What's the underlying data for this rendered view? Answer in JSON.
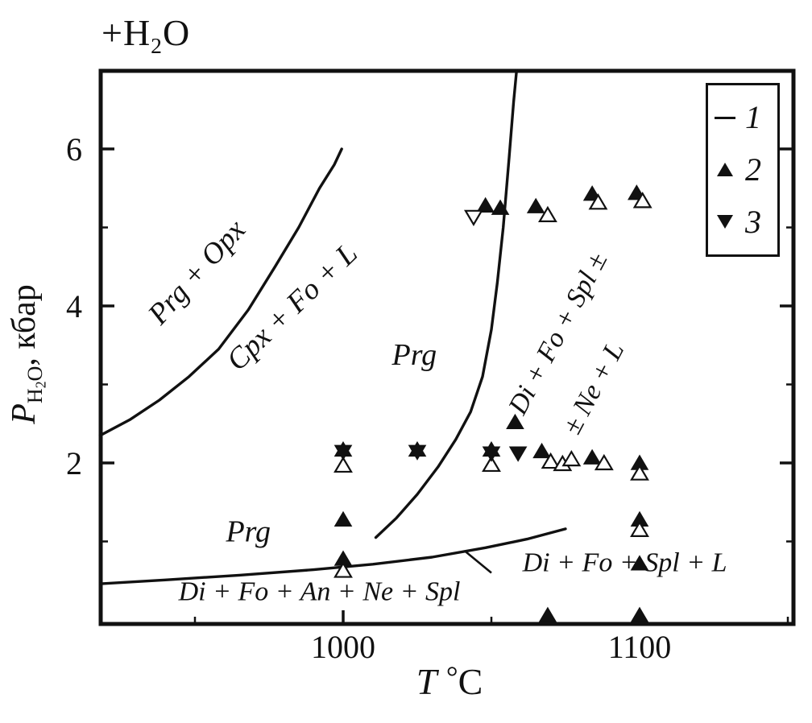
{
  "colors": {
    "ink": "#111111",
    "background": "#ffffff"
  },
  "top_annotation": {
    "prefix": "+H",
    "sub": "2",
    "suffix": "O"
  },
  "axis": {
    "y": {
      "var": "P",
      "sub_h": "H",
      "sub_2": "2",
      "sub_o": "O",
      "rest": ", кбар"
    },
    "x": {
      "var": "T",
      "deg": "°",
      "unit": "C"
    }
  },
  "legend": {
    "items": [
      {
        "symbol": "line",
        "label": "1"
      },
      {
        "symbol": "triangle-up-filled",
        "label": "2"
      },
      {
        "symbol": "triangle-down-filled",
        "label": "3"
      }
    ]
  },
  "chart_data": {
    "type": "scatter",
    "title": "",
    "xlabel": "T, °C",
    "ylabel": "P(H2O), кбар",
    "xlim": [
      918,
      1152
    ],
    "ylim": [
      0,
      7
    ],
    "grid": false,
    "legend_position": "top-right",
    "x_ticks": {
      "major": [
        1000,
        1100
      ],
      "minor": [
        950,
        1050,
        1150
      ]
    },
    "y_ticks": {
      "major": [
        2,
        4,
        6
      ],
      "minor": [
        1,
        3,
        5
      ]
    },
    "series": [
      {
        "name": "2",
        "marker": "triangle-up",
        "fill": "filled",
        "points": [
          [
            1000,
            2.17
          ],
          [
            1025,
            2.17
          ],
          [
            1050,
            2.17
          ],
          [
            1048,
            5.28
          ],
          [
            1053,
            5.25
          ],
          [
            1058,
            2.52
          ],
          [
            1065,
            5.27
          ],
          [
            1067,
            2.15
          ],
          [
            1084,
            5.43
          ],
          [
            1084,
            2.07
          ],
          [
            1099,
            5.44
          ],
          [
            1100,
            2.0
          ],
          [
            1000,
            1.28
          ],
          [
            1000,
            0.78
          ],
          [
            1100,
            1.28
          ],
          [
            1100,
            0.72
          ],
          [
            1100,
            0.06
          ],
          [
            1069,
            0.06
          ]
        ]
      },
      {
        "name": "2-open",
        "marker": "triangle-up",
        "fill": "open",
        "points": [
          [
            1000,
            1.97
          ],
          [
            1050,
            1.98
          ],
          [
            1000,
            0.63
          ],
          [
            1069,
            5.16
          ],
          [
            1070,
            2.02
          ],
          [
            1074,
            1.99
          ],
          [
            1077,
            2.05
          ],
          [
            1086,
            5.32
          ],
          [
            1088,
            2.0
          ],
          [
            1101,
            5.34
          ],
          [
            1100,
            1.87
          ],
          [
            1100,
            1.15
          ]
        ]
      },
      {
        "name": "3",
        "marker": "triangle-down",
        "fill": "filled",
        "points": [
          [
            1000,
            2.14
          ],
          [
            1025,
            2.14
          ],
          [
            1050,
            2.12
          ],
          [
            1059,
            2.12
          ]
        ]
      },
      {
        "name": "3-open",
        "marker": "triangle-down",
        "fill": "open",
        "points": [
          [
            1044,
            5.13
          ]
        ]
      }
    ],
    "curves": [
      {
        "name": "prg-opx-boundary",
        "points": [
          [
            918,
            2.35
          ],
          [
            928,
            2.55
          ],
          [
            938,
            2.8
          ],
          [
            948,
            3.1
          ],
          [
            958,
            3.45
          ],
          [
            968,
            3.95
          ],
          [
            977,
            4.5
          ],
          [
            985,
            5.0
          ],
          [
            992,
            5.5
          ],
          [
            997,
            5.8
          ],
          [
            999.5,
            6.0
          ]
        ]
      },
      {
        "name": "prg-breakdown-boundary",
        "points": [
          [
            1011,
            1.05
          ],
          [
            1018,
            1.3
          ],
          [
            1025,
            1.6
          ],
          [
            1032,
            1.95
          ],
          [
            1038,
            2.3
          ],
          [
            1043,
            2.65
          ],
          [
            1047,
            3.1
          ],
          [
            1050,
            3.7
          ],
          [
            1052,
            4.3
          ],
          [
            1054,
            5.0
          ],
          [
            1056,
            5.9
          ],
          [
            1057.5,
            6.6
          ],
          [
            1058.5,
            7.0
          ]
        ]
      },
      {
        "name": "solidus-boundary",
        "points": [
          [
            918,
            0.46
          ],
          [
            940,
            0.51
          ],
          [
            965,
            0.57
          ],
          [
            990,
            0.64
          ],
          [
            1010,
            0.71
          ],
          [
            1030,
            0.8
          ],
          [
            1048,
            0.92
          ],
          [
            1062,
            1.03
          ],
          [
            1075,
            1.16
          ]
        ]
      }
    ],
    "annotation_line": {
      "x1": 1041,
      "y1": 0.88,
      "x2": 1050,
      "y2": 0.6
    },
    "region_labels": [
      {
        "text": "Prg + Opx",
        "t": 953,
        "p": 4.35,
        "angle": -48,
        "size": 37
      },
      {
        "text": "Cpx + Fo + L",
        "t": 985,
        "p": 3.9,
        "angle": -44,
        "size": 37
      },
      {
        "text": "Prg",
        "t": 1024,
        "p": 3.25,
        "angle": 0,
        "size": 38
      },
      {
        "text": "Di + Fo + Spl ±",
        "t": 1075,
        "p": 3.6,
        "angle": -62,
        "size": 34
      },
      {
        "text": "± Ne + L",
        "t": 1087,
        "p": 2.9,
        "angle": -62,
        "size": 34
      },
      {
        "text": "Prg",
        "t": 968,
        "p": 1.0,
        "angle": 0,
        "size": 38
      },
      {
        "text": "Di + Fo + An + Ne + Spl",
        "t": 992,
        "p": 0.25,
        "angle": 0,
        "size": 34
      },
      {
        "text": "Di + Fo + Spl + L",
        "t": 1095,
        "p": 0.62,
        "angle": 0,
        "size": 34
      }
    ]
  }
}
